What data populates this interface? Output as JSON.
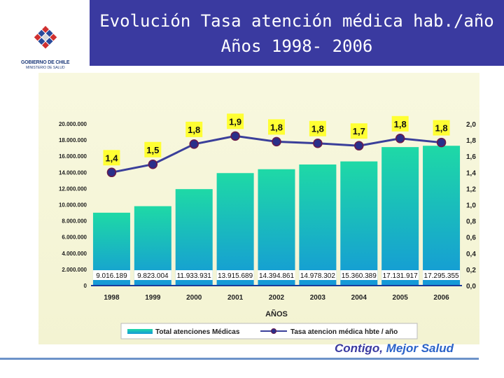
{
  "header": {
    "title_line1": "Evolución Tasa atención médica hab./año",
    "title_line2": "Años 1998- 2006"
  },
  "logo": {
    "line1": "GOBIERNO DE CHILE",
    "line2": "MINISTERIO DE SALUD"
  },
  "footer": {
    "slogan_part1": "Contigo, ",
    "slogan_part2": "Mejor Salud"
  },
  "colors": {
    "header_bg": "#3a3aa0",
    "bar_top": "#1ed9a6",
    "bar_bottom": "#1598d8",
    "line": "#3a3f9a",
    "marker": "#2a2f8a",
    "label_bg": "#ffff33"
  },
  "chart_data": {
    "type": "bar",
    "categories": [
      "1998",
      "1999",
      "2000",
      "2001",
      "2002",
      "2003",
      "2004",
      "2005",
      "2006"
    ],
    "series": [
      {
        "name": "Total atenciones Médicas",
        "type": "bar",
        "axis": "left",
        "values": [
          9016189,
          9823004,
          11933931,
          13915689,
          14394861,
          14978302,
          15360389,
          17131917,
          17295355
        ],
        "labels": [
          "9.016.189",
          "9.823.004",
          "11.933.931",
          "13.915.689",
          "14.394.861",
          "14.978.302",
          "15.360.389",
          "17.131.917",
          "17.295.355"
        ]
      },
      {
        "name": "Tasa atencion médica hbte / año",
        "type": "line",
        "axis": "right",
        "values": [
          1.4,
          1.5,
          1.75,
          1.85,
          1.78,
          1.76,
          1.73,
          1.82,
          1.77
        ],
        "labels": [
          "1,4",
          "1,5",
          "1,8",
          "1,9",
          "1,8",
          "1,8",
          "1,7",
          "1,8",
          "1,8"
        ]
      }
    ],
    "xlabel": "AÑOS",
    "ylim_left": [
      0,
      20000000
    ],
    "ylim_right": [
      0,
      2.0
    ],
    "yticks_left": [
      "0",
      "2.000.000",
      "4.000.000",
      "6.000.000",
      "8.000.000",
      "10.000.000",
      "12.000.000",
      "14.000.000",
      "16.000.000",
      "18.000.000",
      "20.000.000"
    ],
    "yticks_right": [
      "0,0",
      "0,2",
      "0,4",
      "0,6",
      "0,8",
      "1,0",
      "1,2",
      "1,4",
      "1,6",
      "1,8",
      "2,0"
    ],
    "legend_position": "bottom"
  }
}
